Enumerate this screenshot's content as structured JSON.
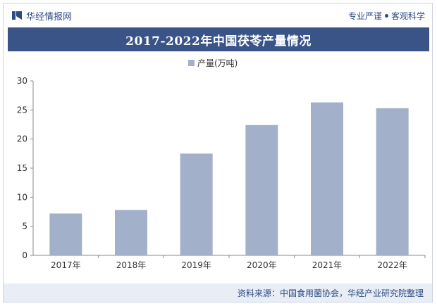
{
  "header": {
    "brand": "华经情报网",
    "tagline_left": "专业严谨",
    "tagline_right": "客观科学"
  },
  "title": "2017-2022年中国茯苓产量情况",
  "source": "资料来源：中国食用菌协会，华经产业研究院整理",
  "colors": {
    "title_bar": "#3a5488",
    "bar": "#a3b0c9",
    "brand_text": "#2c4a83"
  },
  "chart_data": {
    "type": "bar",
    "categories": [
      "2017年",
      "2018年",
      "2019年",
      "2020年",
      "2021年",
      "2022年"
    ],
    "series": [
      {
        "name": "产量(万吨)",
        "values": [
          7.2,
          7.8,
          17.5,
          22.4,
          26.3,
          25.3
        ]
      }
    ],
    "ylim": [
      0,
      30
    ],
    "yticks": [
      0,
      5,
      10,
      15,
      20,
      25,
      30
    ],
    "legend": "top-center",
    "grid": false
  }
}
